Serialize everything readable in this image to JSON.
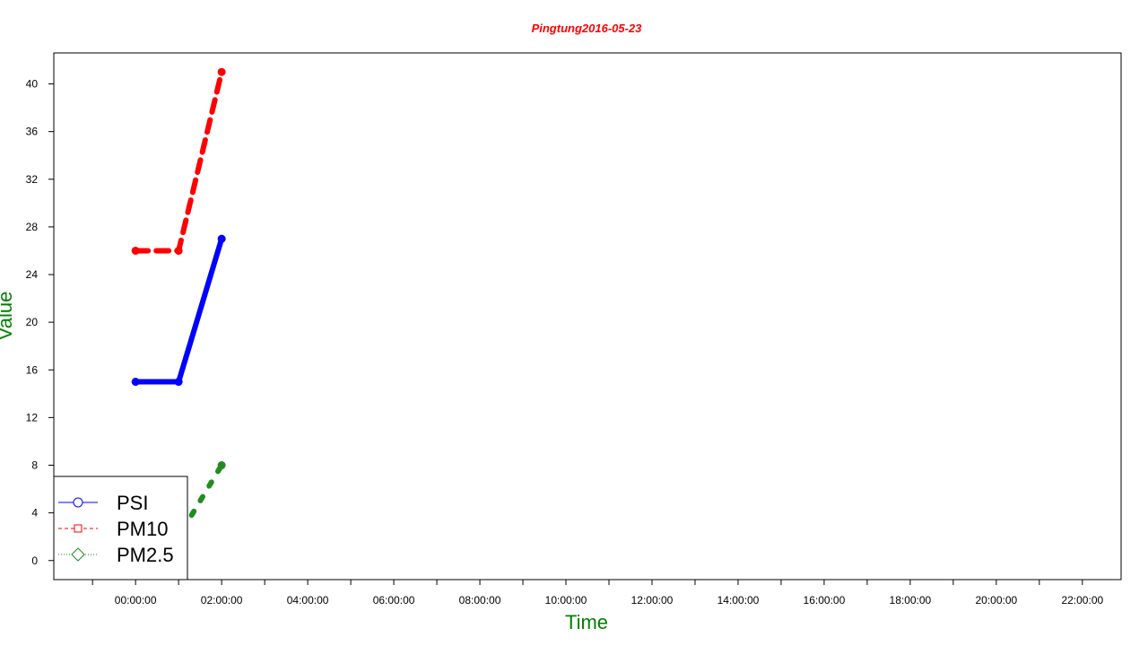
{
  "chart_data": {
    "type": "line",
    "title": "Pingtung2016-05-23",
    "xlabel": "Time",
    "ylabel": "Value",
    "x_tick_labels": [
      "00:00:00",
      "02:00:00",
      "04:00:00",
      "06:00:00",
      "08:00:00",
      "10:00:00",
      "12:00:00",
      "14:00:00",
      "16:00:00",
      "18:00:00",
      "20:00:00",
      "22:00:00"
    ],
    "y_ticks": [
      0,
      4,
      8,
      12,
      16,
      20,
      24,
      28,
      32,
      36,
      40
    ],
    "xlim_hours": [
      -1.9,
      22.9
    ],
    "ylim": [
      -1.6,
      42.6
    ],
    "x_hours": [
      0,
      1,
      2
    ],
    "series": [
      {
        "name": "PSI",
        "values": [
          15,
          15,
          27
        ],
        "color": "#0000ff",
        "dash": "solid",
        "marker": "circle"
      },
      {
        "name": "PM10",
        "values": [
          26,
          26,
          41
        ],
        "color": "#ff0000",
        "dash": "dashed",
        "marker": "square"
      },
      {
        "name": "PM2.5",
        "values": [
          2,
          2,
          8
        ],
        "color": "#228b22",
        "dash": "dotted",
        "marker": "diamond"
      }
    ],
    "legend_position": "bottom-left",
    "title_color": "#ff0000",
    "axis_title_color": "#008000",
    "grid": false
  }
}
